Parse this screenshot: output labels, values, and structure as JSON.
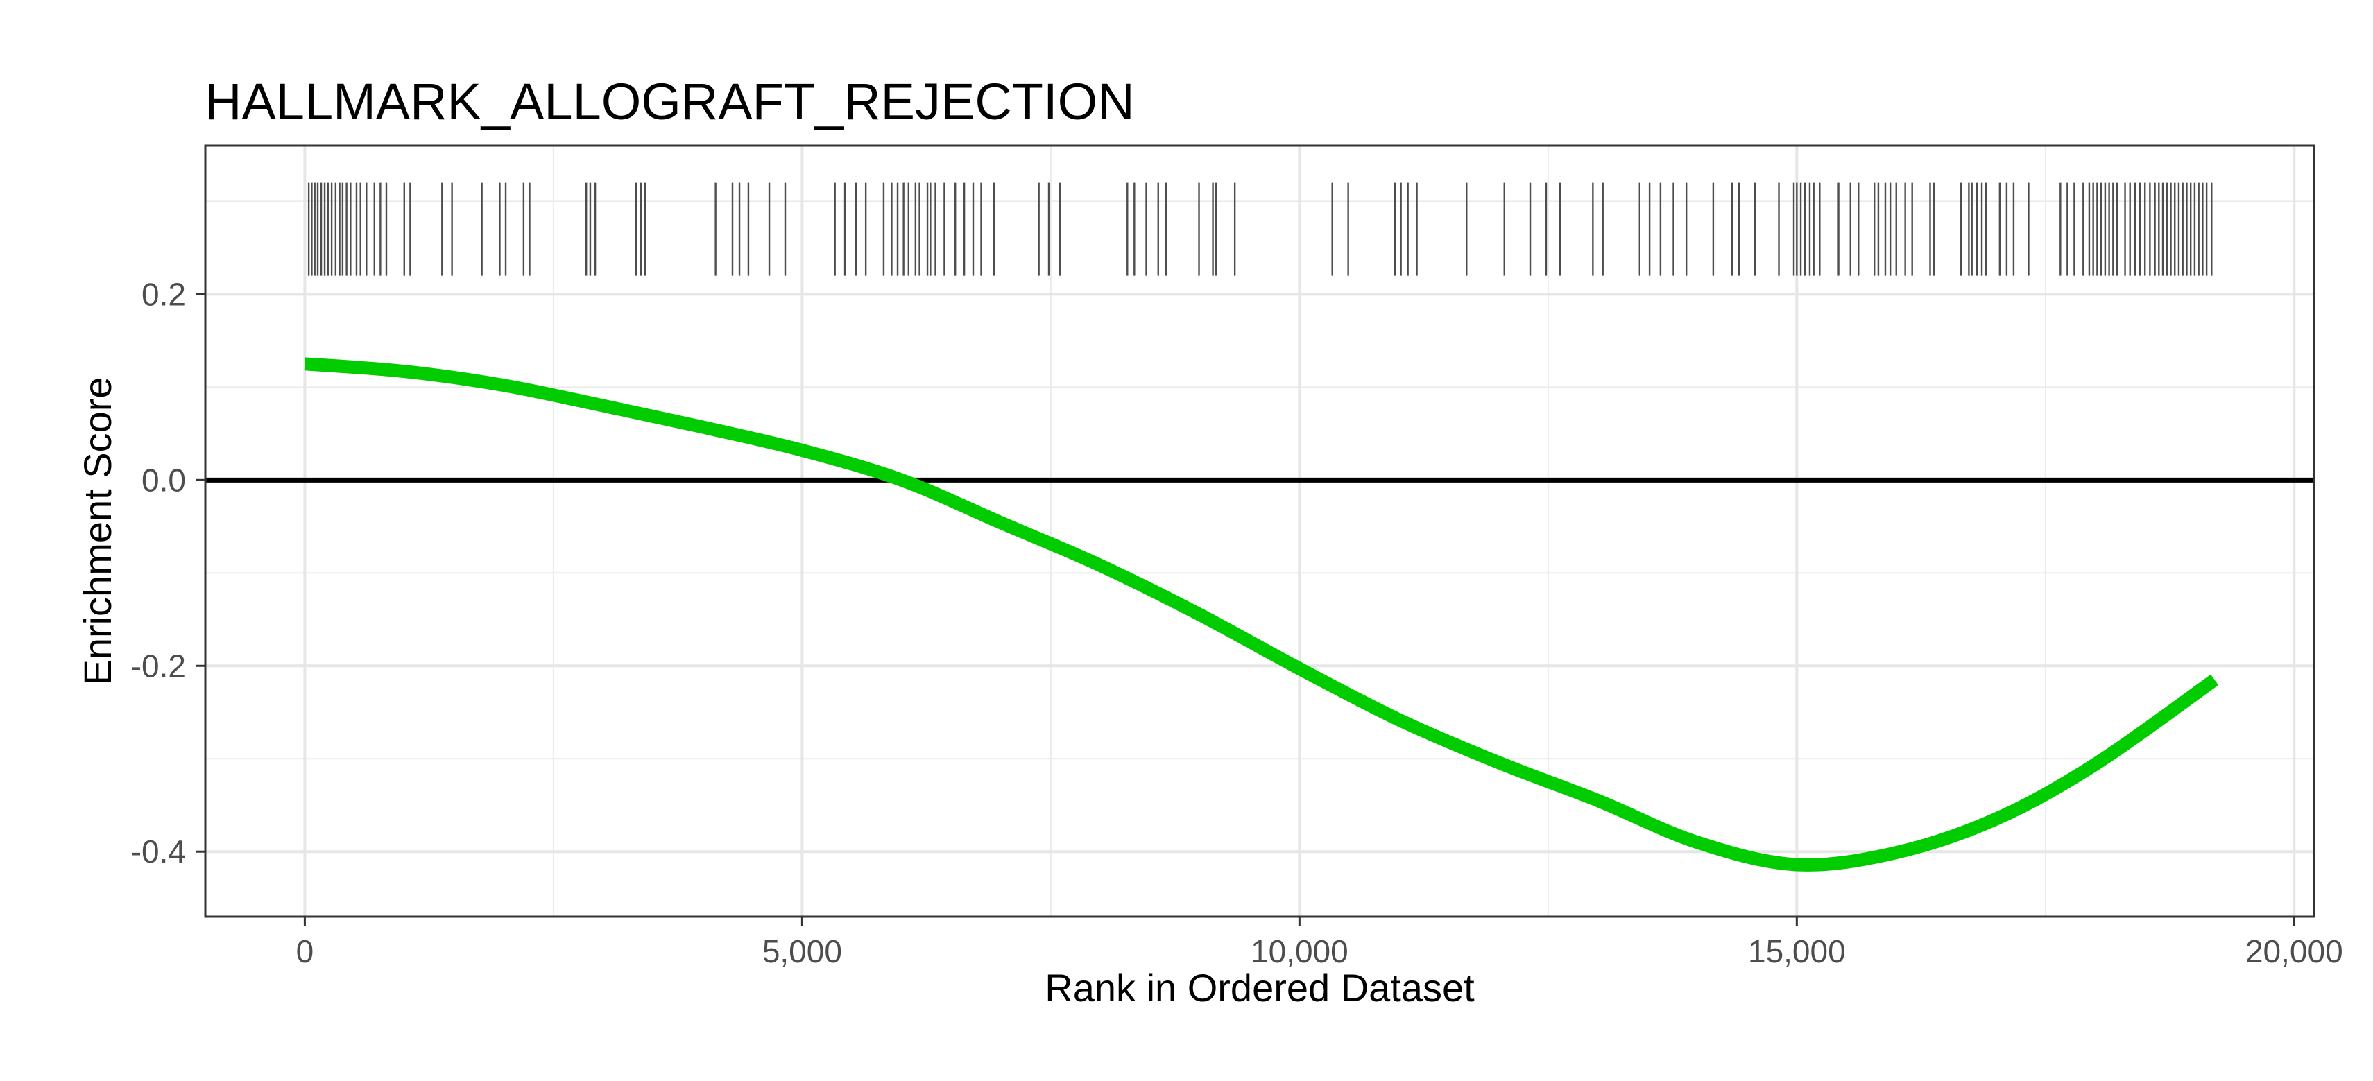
{
  "chart_data": {
    "type": "line",
    "title": "HALLMARK_ALLOGRAFT_REJECTION",
    "xlabel": "Rank in Ordered Dataset",
    "ylabel": "Enrichment Score",
    "xlim": [
      -1000,
      20200
    ],
    "ylim": [
      -0.47,
      0.36
    ],
    "x_ticks": [
      0,
      5000,
      10000,
      15000,
      20000
    ],
    "x_tick_labels": [
      "0",
      "5,000",
      "10,000",
      "15,000",
      "20,000"
    ],
    "y_ticks": [
      -0.4,
      -0.2,
      0.0,
      0.2
    ],
    "y_tick_labels": [
      "-0.4",
      "-0.2",
      "0.0",
      "0.2"
    ],
    "grid": true,
    "reference_line_y": 0,
    "series": [
      {
        "color": "#00cc00",
        "x": [
          0,
          1000,
          2000,
          3000,
          4000,
          5000,
          6000,
          7000,
          8000,
          9000,
          10000,
          11000,
          12000,
          13000,
          14000,
          15000,
          16000,
          17000,
          18000,
          19200
        ],
        "y": [
          0.125,
          0.117,
          0.102,
          0.08,
          0.057,
          0.032,
          0.0,
          -0.046,
          -0.092,
          -0.145,
          -0.203,
          -0.258,
          -0.304,
          -0.345,
          -0.39,
          -0.414,
          -0.401,
          -0.365,
          -0.306,
          -0.215
        ]
      }
    ],
    "gene_hits": {
      "color": "#4d4d4d",
      "y_range": [
        0.22,
        0.32
      ],
      "ranks": [
        40,
        70,
        100,
        130,
        165,
        200,
        235,
        270,
        310,
        350,
        380,
        420,
        460,
        520,
        560,
        620,
        700,
        760,
        820,
        1000,
        1060,
        1380,
        1480,
        1780,
        1960,
        2020,
        2200,
        2260,
        2830,
        2870,
        2920,
        3330,
        3380,
        3420,
        4130,
        4300,
        4370,
        4460,
        4670,
        4830,
        5330,
        5430,
        5540,
        5640,
        5820,
        5900,
        5960,
        6020,
        6070,
        6140,
        6180,
        6260,
        6290,
        6340,
        6430,
        6540,
        6630,
        6720,
        6800,
        6930,
        7380,
        7480,
        7590,
        8270,
        8340,
        8460,
        8580,
        8660,
        8990,
        9130,
        9160,
        9350,
        10330,
        10490,
        10960,
        11020,
        11090,
        11180,
        11680,
        12060,
        12320,
        12480,
        12620,
        12950,
        13050,
        13420,
        13520,
        13630,
        13760,
        13890,
        14160,
        14350,
        14420,
        14580,
        14820,
        14970,
        15000,
        15040,
        15080,
        15130,
        15170,
        15230,
        15420,
        15540,
        15620,
        15780,
        15820,
        15890,
        15940,
        16000,
        16090,
        16160,
        16340,
        16380,
        16650,
        16730,
        16760,
        16810,
        16860,
        16900,
        17040,
        17110,
        17180,
        17330,
        17650,
        17720,
        17790,
        17880,
        17940,
        17980,
        18020,
        18060,
        18100,
        18140,
        18180,
        18220,
        18300,
        18350,
        18400,
        18450,
        18500,
        18550,
        18600,
        18640,
        18680,
        18720,
        18760,
        18800,
        18840,
        18880,
        18920,
        18960,
        19000,
        19040,
        19080,
        19120,
        19170
      ]
    }
  }
}
